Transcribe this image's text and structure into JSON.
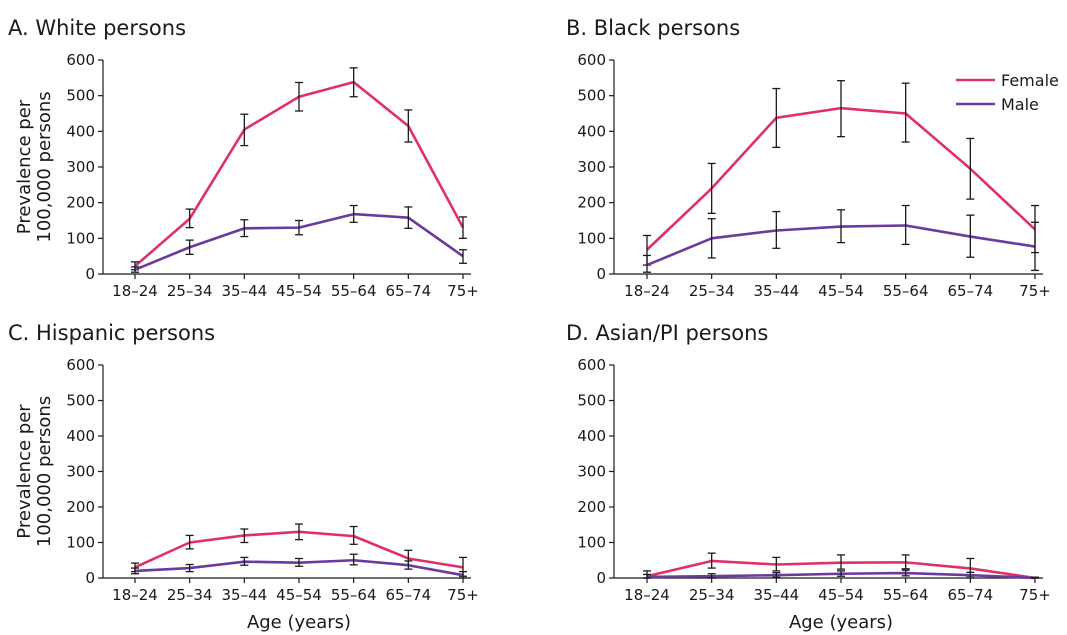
{
  "chart_data": [
    {
      "type": "line",
      "title": "A. White persons",
      "xlabel": "",
      "ylabel": "Prevalence per 100,000 persons",
      "ylim": [
        0,
        600
      ],
      "yticks": [
        0,
        100,
        200,
        300,
        400,
        500,
        600
      ],
      "categories": [
        "18–24",
        "25–34",
        "35–44",
        "45–54",
        "55–64",
        "65–74",
        "75+"
      ],
      "legend": "none",
      "series": [
        {
          "name": "Female",
          "values": [
            22,
            155,
            405,
            497,
            538,
            415,
            130
          ],
          "err_low": [
            12,
            130,
            360,
            457,
            497,
            370,
            100
          ],
          "err_high": [
            34,
            182,
            448,
            537,
            578,
            460,
            160
          ]
        },
        {
          "name": "Male",
          "values": [
            12,
            75,
            128,
            130,
            168,
            158,
            50
          ],
          "err_low": [
            5,
            55,
            105,
            110,
            145,
            128,
            30
          ],
          "err_high": [
            20,
            95,
            152,
            150,
            192,
            188,
            68
          ]
        }
      ]
    },
    {
      "type": "line",
      "title": "B. Black persons",
      "xlabel": "",
      "ylabel": "",
      "ylim": [
        0,
        600
      ],
      "yticks": [
        0,
        100,
        200,
        300,
        400,
        500,
        600
      ],
      "categories": [
        "18–24",
        "25–34",
        "35–44",
        "45–54",
        "55–64",
        "65–74",
        "75+"
      ],
      "legend": "top-right",
      "series": [
        {
          "name": "Female",
          "values": [
            68,
            240,
            438,
            465,
            450,
            295,
            125
          ],
          "err_low": [
            25,
            170,
            355,
            385,
            370,
            210,
            60
          ],
          "err_high": [
            108,
            310,
            520,
            542,
            535,
            380,
            192
          ]
        },
        {
          "name": "Male",
          "values": [
            25,
            100,
            122,
            133,
            136,
            105,
            77
          ],
          "err_low": [
            5,
            45,
            72,
            88,
            83,
            47,
            10
          ],
          "err_high": [
            52,
            155,
            175,
            180,
            192,
            165,
            145
          ]
        }
      ]
    },
    {
      "type": "line",
      "title": "C. Hispanic persons",
      "xlabel": "Age (years)",
      "ylabel": "Prevalence per 100,000 persons",
      "ylim": [
        0,
        600
      ],
      "yticks": [
        0,
        100,
        200,
        300,
        400,
        500,
        600
      ],
      "categories": [
        "18–24",
        "25–34",
        "35–44",
        "45–54",
        "55–64",
        "65–74",
        "75+"
      ],
      "legend": "none",
      "series": [
        {
          "name": "Female",
          "values": [
            30,
            100,
            120,
            130,
            118,
            55,
            30
          ],
          "err_low": [
            18,
            82,
            100,
            108,
            95,
            35,
            5
          ],
          "err_high": [
            42,
            120,
            138,
            152,
            145,
            78,
            58
          ]
        },
        {
          "name": "Male",
          "values": [
            20,
            28,
            46,
            43,
            50,
            36,
            8
          ],
          "err_low": [
            12,
            18,
            36,
            33,
            37,
            25,
            0
          ],
          "err_high": [
            28,
            38,
            58,
            55,
            67,
            48,
            18
          ]
        }
      ]
    },
    {
      "type": "line",
      "title": "D. Asian/PI persons",
      "xlabel": "Age (years)",
      "ylabel": "",
      "ylim": [
        0,
        600
      ],
      "yticks": [
        0,
        100,
        200,
        300,
        400,
        500,
        600
      ],
      "categories": [
        "18–24",
        "25–34",
        "35–44",
        "45–54",
        "55–64",
        "65–74",
        "75+"
      ],
      "legend": "none",
      "series": [
        {
          "name": "Female",
          "values": [
            5,
            48,
            38,
            43,
            44,
            27,
            0
          ],
          "err_low": [
            0,
            28,
            20,
            25,
            26,
            5,
            0
          ],
          "err_high": [
            20,
            70,
            58,
            65,
            65,
            55,
            2
          ]
        },
        {
          "name": "Male",
          "values": [
            3,
            5,
            8,
            12,
            14,
            8,
            0
          ],
          "err_low": [
            0,
            0,
            2,
            5,
            6,
            0,
            0
          ],
          "err_high": [
            10,
            12,
            15,
            20,
            22,
            16,
            2
          ]
        }
      ]
    }
  ],
  "colors": {
    "Female": "#e0306b",
    "Male": "#6a3aa0",
    "axis": "#1a1a1a"
  }
}
